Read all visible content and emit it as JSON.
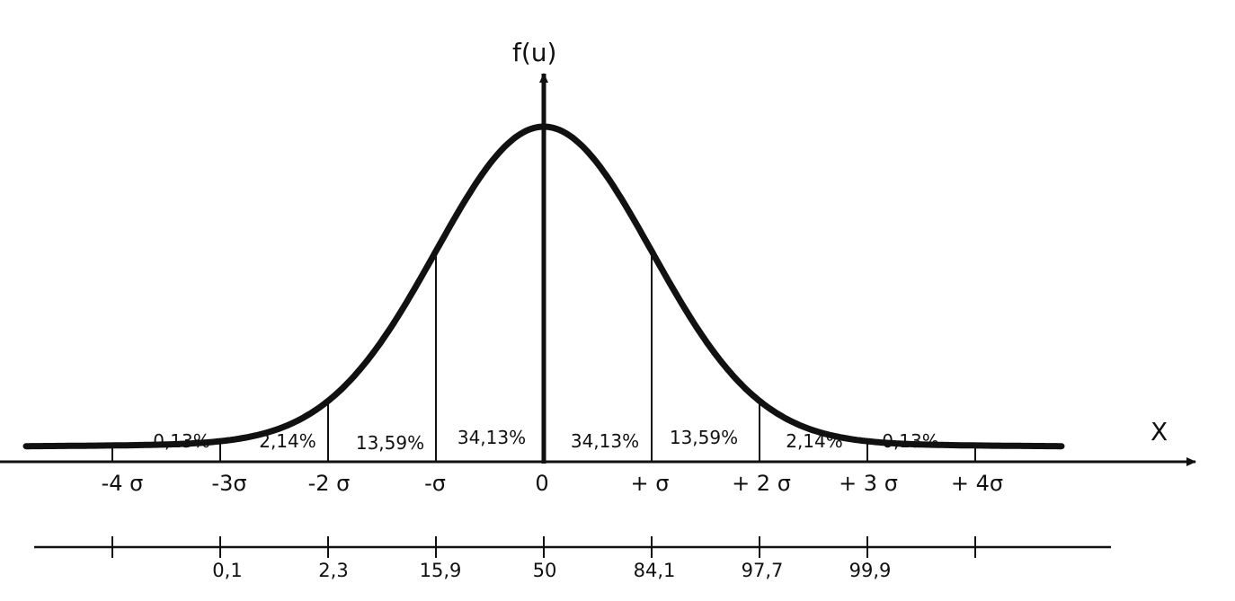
{
  "chart_data": {
    "type": "area",
    "y_axis_label": "f(u)",
    "x_axis_label": "X",
    "sigma_tick_labels": [
      "-4 σ",
      "-3σ",
      "-2 σ",
      "-σ",
      "0",
      "+ σ",
      "+ 2 σ",
      "+ 3 σ",
      "+ 4σ"
    ],
    "band_labels": [
      "0,13%",
      "2,14%",
      "13,59%",
      "34,13%",
      "34,13%",
      "13,59%",
      "2,14%",
      "0,13%"
    ],
    "band_values_percent": [
      0.13,
      2.14,
      13.59,
      34.13,
      34.13,
      13.59,
      2.14,
      0.13
    ],
    "cumulative_labels": [
      "0,1",
      "2,3",
      "15,9",
      "50",
      "84,1",
      "97,7",
      "99,9"
    ],
    "cumulative_values_percent": [
      0.1,
      2.3,
      15.9,
      50,
      84.1,
      97.7,
      99.9
    ],
    "sigma_range": [
      -4,
      4
    ]
  }
}
